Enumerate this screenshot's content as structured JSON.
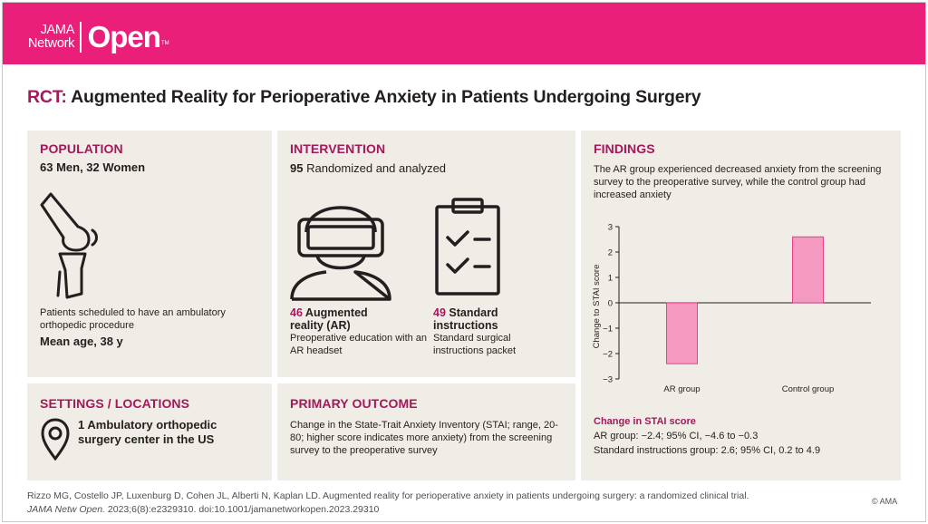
{
  "header": {
    "brand_top": "JAMA",
    "brand_bottom": "Network",
    "brand_open": "Open",
    "brand_tm": "TM"
  },
  "title": {
    "tag": "RCT:",
    "text": "Augmented Reality for Perioperative Anxiety in Patients Undergoing Surgery"
  },
  "population": {
    "heading": "POPULATION",
    "summary": "63 Men, 32 Women",
    "description": "Patients scheduled to have an ambulatory orthopedic procedure",
    "mean_age": "Mean age, 38 y",
    "icon": "knee-joint-icon"
  },
  "intervention": {
    "heading": "INTERVENTION",
    "randomized_count": "95",
    "randomized_text": "Randomized and analyzed",
    "ar_group": {
      "count": "46",
      "name": "Augmented reality (AR)",
      "description": "Preoperative education with an AR headset",
      "icon": "vr-headset-person-icon"
    },
    "standard_group": {
      "count": "49",
      "name": "Standard instructions",
      "description": "Standard surgical instructions packet",
      "icon": "clipboard-checklist-icon"
    }
  },
  "findings": {
    "heading": "FINDINGS",
    "summary": "The AR group experienced decreased anxiety from the screening survey to the preoperative survey, while the control group had increased anxiety",
    "change_heading": "Change in STAI score",
    "ar_result": "AR group: −2.4; 95% CI, −4.6 to −0.3",
    "standard_result": "Standard instructions group: 2.6; 95% CI, 0.2 to 4.9",
    "bar_color": "#f49ac1",
    "bar_border": "#ea1f79"
  },
  "chart_data": {
    "type": "bar",
    "categories": [
      "AR group",
      "Control group"
    ],
    "values": [
      -2.4,
      2.6
    ],
    "ylabel": "Change to STAI score",
    "ylim": [
      -3,
      3
    ],
    "yticks": [
      3,
      2,
      1,
      0,
      -1,
      -2,
      -3
    ],
    "ytick_labels": [
      "3",
      "2",
      "1",
      "0",
      "−1",
      "−2",
      "−3"
    ],
    "grid": false
  },
  "settings": {
    "heading": "SETTINGS / LOCATIONS",
    "count": "1",
    "text": "Ambulatory orthopedic surgery center in the US",
    "icon": "location-pin-icon"
  },
  "outcome": {
    "heading": "PRIMARY OUTCOME",
    "text": "Change in the State-Trait Anxiety Inventory (STAI; range, 20-80; higher score indicates more anxiety) from the screening survey to the preoperative survey"
  },
  "citation": {
    "line1": "Rizzo MG, Costello JP, Luxenburg D, Cohen JL, Alberti N, Kaplan LD. Augmented reality for perioperative anxiety in patients undergoing surgery: a randomized clinical trial.",
    "journal": "JAMA Netw Open.",
    "details": " 2023;6(8):e2329310. doi:10.1001/jamanetworkopen.2023.29310",
    "copyright": "© AMA"
  }
}
